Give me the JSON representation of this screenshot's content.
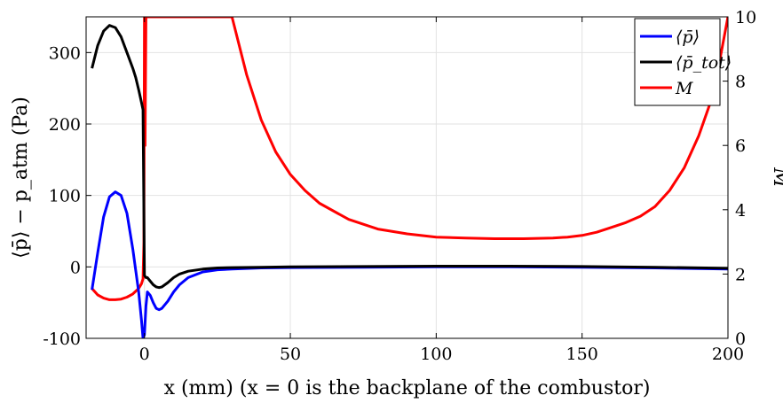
{
  "chart_data": {
    "type": "line",
    "xlabel": "x (mm) (x = 0 is the backplane of the combustor)",
    "ylabel_left": "⟨p̄⟩ − p_atm (Pa)",
    "ylabel_right": "M",
    "xlim": [
      -20,
      200
    ],
    "ylim_left": [
      -100,
      350
    ],
    "ylim_right": [
      0,
      10
    ],
    "xticks": [
      0,
      50,
      100,
      150,
      200
    ],
    "xtick_labels": [
      "0",
      "50",
      "100",
      "150",
      "200"
    ],
    "yticks_left": [
      -100,
      0,
      100,
      200,
      300
    ],
    "ytick_labels_left": [
      "-100",
      "0",
      "100",
      "200",
      "300"
    ],
    "yticks_right": [
      0,
      2,
      4,
      6,
      8,
      10
    ],
    "ytick_labels_right": [
      "0",
      "2",
      "4",
      "6",
      "8",
      "10"
    ],
    "grid": true,
    "legend_position": "top-right",
    "series": [
      {
        "name": "⟨p̄⟩",
        "axis": "left",
        "color": "#0000ff",
        "x": [
          -18,
          -16,
          -14,
          -12,
          -10,
          -8,
          -6,
          -4,
          -3,
          -2,
          -1,
          -0.5,
          0,
          0.5,
          1,
          2,
          3,
          4,
          5,
          6,
          8,
          10,
          12,
          15,
          20,
          25,
          30,
          40,
          50,
          75,
          100,
          125,
          150,
          175,
          200
        ],
        "y": [
          -32,
          20,
          70,
          98,
          105,
          100,
          75,
          25,
          -5,
          -35,
          -75,
          -100,
          -95,
          -55,
          -35,
          -40,
          -50,
          -58,
          -60,
          -58,
          -48,
          -35,
          -25,
          -15,
          -7,
          -4,
          -3,
          -1.5,
          -1,
          -0.5,
          0,
          0,
          -0.5,
          -1.5,
          -3
        ]
      },
      {
        "name": "⟨p̄_tot⟩",
        "axis": "left",
        "color": "#000000",
        "x": [
          -18,
          -16,
          -14,
          -12,
          -10,
          -8,
          -6,
          -4,
          -3,
          -2,
          -1,
          -0.5,
          0,
          0.5,
          1,
          2,
          3,
          4,
          5,
          6,
          8,
          10,
          12,
          15,
          20,
          25,
          30,
          40,
          50,
          75,
          100,
          125,
          150,
          175,
          200
        ],
        "y": [
          278,
          310,
          330,
          338,
          335,
          322,
          300,
          278,
          265,
          248,
          230,
          220,
          -12,
          -15,
          -15,
          -20,
          -25,
          -28,
          -29,
          -28,
          -22,
          -15,
          -10,
          -6,
          -3,
          -1.5,
          -1,
          -0.5,
          0,
          0.5,
          1,
          1,
          0.5,
          -0.5,
          -2
        ]
      },
      {
        "name": "M",
        "axis": "right",
        "color": "#ff0000",
        "x": [
          -18,
          -16,
          -14,
          -12,
          -10,
          -8,
          -6,
          -4,
          -2,
          -1,
          -0.5,
          -0.2,
          0,
          0.2,
          0.5,
          30,
          35,
          40,
          45,
          50,
          55,
          60,
          70,
          80,
          90,
          100,
          110,
          120,
          130,
          140,
          145,
          150,
          155,
          160,
          165,
          170,
          175,
          180,
          185,
          190,
          195,
          200
        ],
        "y": [
          1.55,
          1.35,
          1.25,
          1.2,
          1.2,
          1.22,
          1.28,
          1.38,
          1.55,
          1.7,
          1.85,
          3,
          10,
          6,
          10,
          10,
          8.2,
          6.8,
          5.8,
          5.1,
          4.6,
          4.2,
          3.7,
          3.4,
          3.25,
          3.15,
          3.12,
          3.1,
          3.1,
          3.12,
          3.15,
          3.2,
          3.3,
          3.45,
          3.6,
          3.8,
          4.1,
          4.6,
          5.3,
          6.3,
          7.6,
          10
        ]
      }
    ]
  }
}
